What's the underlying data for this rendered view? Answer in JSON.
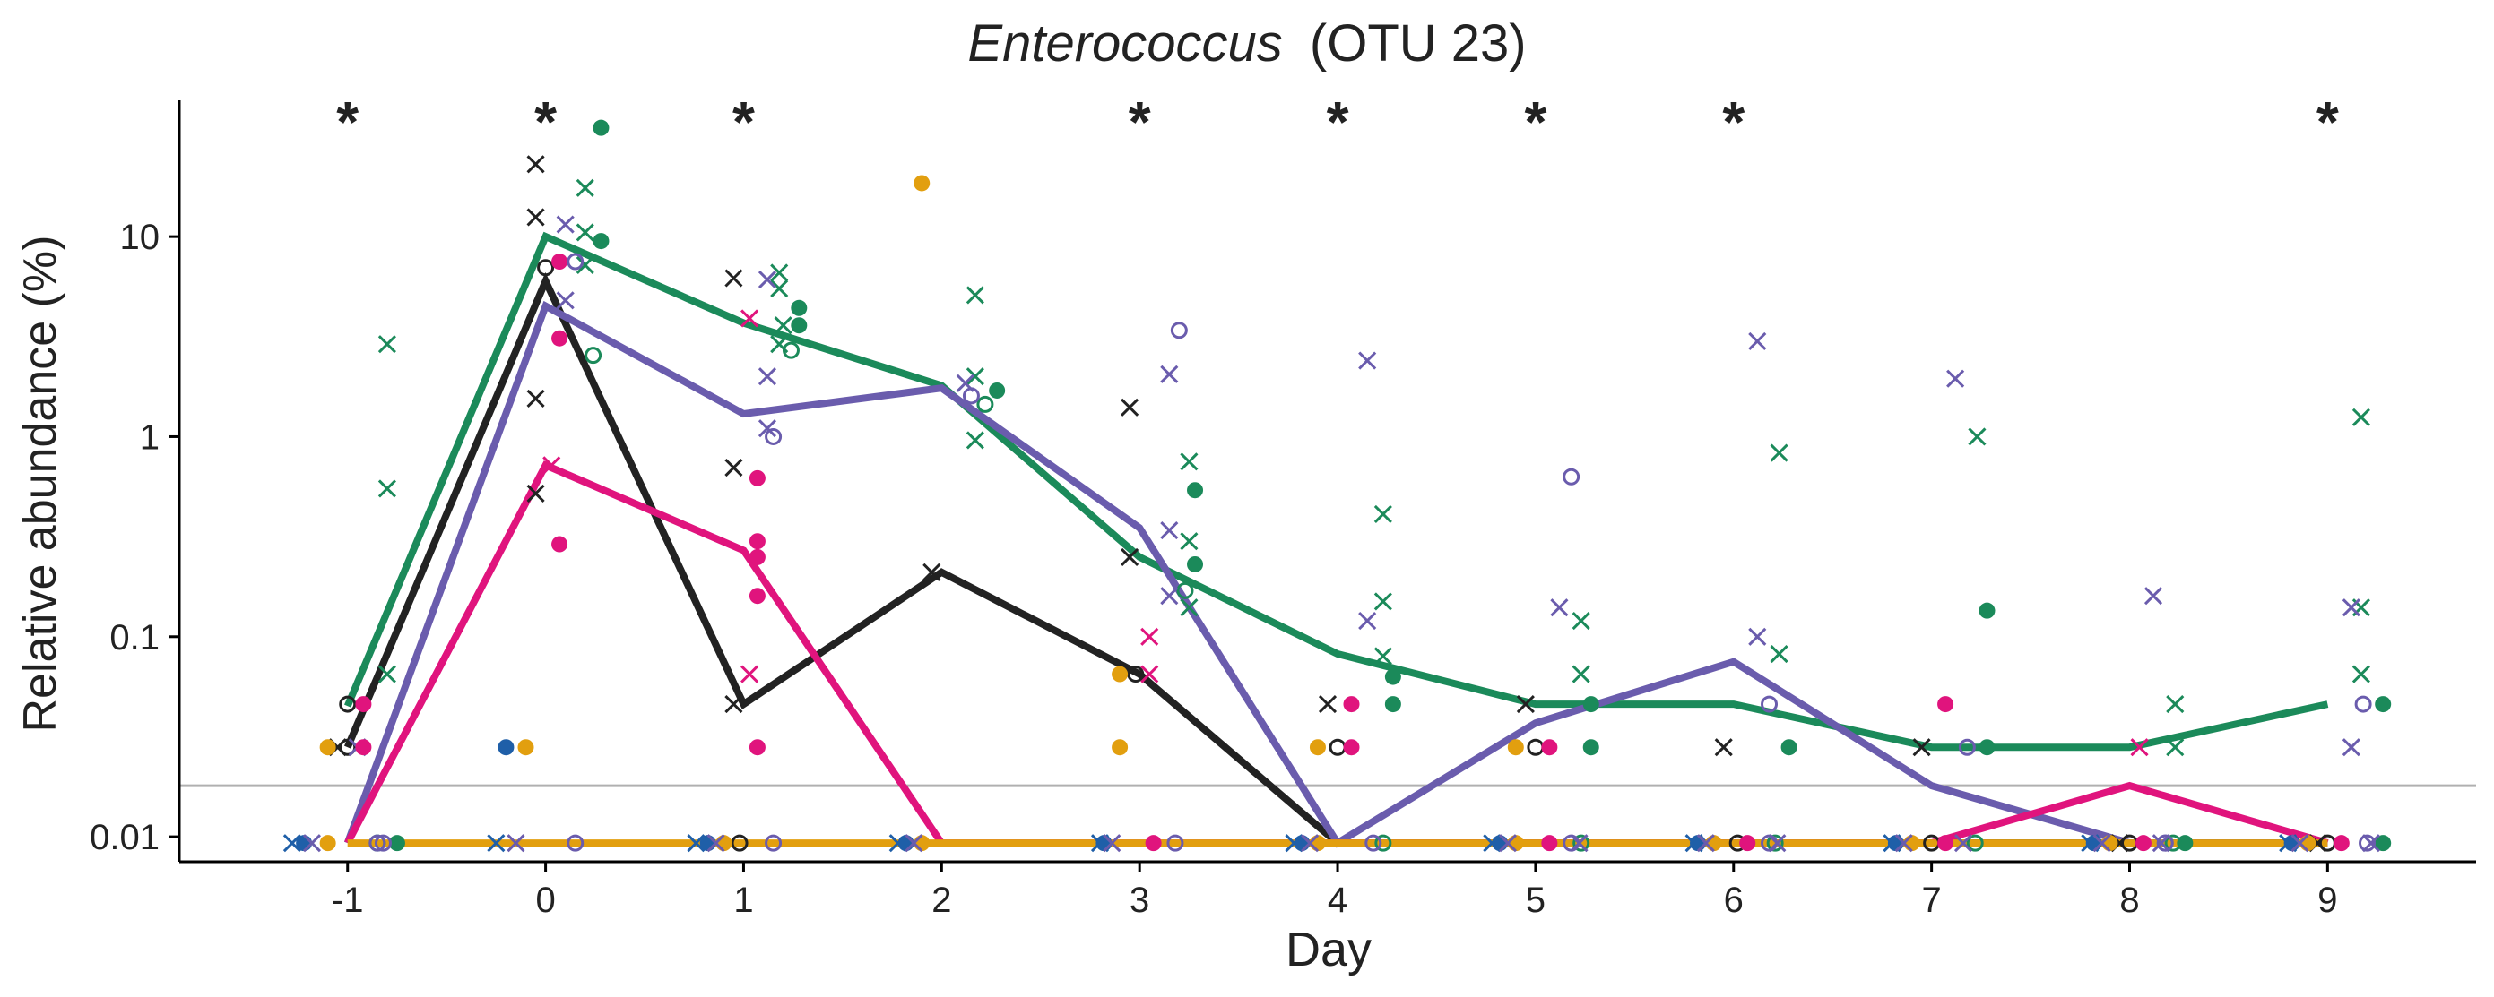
{
  "chart_data": {
    "type": "line",
    "title": {
      "taxon": "Enterococcus",
      "otu": "(OTU 23)"
    },
    "xlabel": "Day",
    "ylabel": "Relative abundance (%)",
    "x_ticks": [
      -1,
      0,
      1,
      2,
      3,
      4,
      5,
      6,
      7,
      8,
      9
    ],
    "y_scale": "log10",
    "y_ticks": [
      {
        "value": 0.01,
        "label": "0.01"
      },
      {
        "value": 0.1,
        "label": "0.1"
      },
      {
        "value": 1,
        "label": "1"
      },
      {
        "value": 10,
        "label": "10"
      }
    ],
    "ylim": [
      0.0075,
      48
    ],
    "xlim": [
      -1.85,
      9.75
    ],
    "detection_limit": 0.018,
    "significance_marker": "*",
    "significant_days": [
      -1,
      0,
      1,
      3,
      4,
      5,
      6,
      9
    ],
    "grid": false,
    "legend": "none",
    "series": [
      {
        "color": "#1b8a5a",
        "x": [
          -1,
          0,
          1,
          2,
          3,
          4,
          5,
          6,
          7,
          8,
          9
        ],
        "y": [
          0.045,
          10,
          3.7,
          1.8,
          0.25,
          0.082,
          0.046,
          0.046,
          0.028,
          0.028,
          0.046
        ]
      },
      {
        "color": "#222222",
        "x": [
          -1,
          0,
          1,
          2,
          3,
          4,
          5,
          6,
          7,
          8,
          9
        ],
        "y": [
          0.028,
          6,
          0.046,
          0.21,
          0.065,
          0.0093,
          0.0093,
          0.0093,
          0.0093,
          0.0093,
          0.0093
        ]
      },
      {
        "color": "#6a5cad",
        "x": [
          -1,
          0,
          1,
          2,
          3,
          4,
          5,
          6,
          7,
          8,
          9
        ],
        "y": [
          0.0093,
          4.5,
          1.3,
          1.75,
          0.35,
          0.0093,
          0.037,
          0.075,
          0.018,
          0.0093,
          0.0093
        ]
      },
      {
        "color": "#e0147d",
        "x": [
          -1,
          0,
          1,
          2,
          3,
          4,
          5,
          6,
          7,
          8,
          9
        ],
        "y": [
          0.0093,
          0.72,
          0.27,
          0.0093,
          0.0093,
          0.0093,
          0.0093,
          0.0093,
          0.0093,
          0.018,
          0.0093
        ]
      },
      {
        "color": "#e29f0f",
        "x": [
          -1,
          0,
          1,
          2,
          3,
          4,
          5,
          6,
          7,
          8,
          9
        ],
        "y": [
          0.0093,
          0.0093,
          0.0093,
          0.0093,
          0.0093,
          0.0093,
          0.0093,
          0.0093,
          0.0093,
          0.0093,
          0.0093
        ]
      }
    ],
    "points": [
      {
        "color": "#1b8a5a",
        "shape": "x",
        "x": [
          -0.8,
          -0.8,
          -0.8,
          0.2,
          0.2,
          0.2,
          1.18,
          1.18,
          1.18,
          1.2,
          2.17,
          2.17,
          2.17,
          3.25,
          3.25,
          3.25,
          4.23,
          4.23,
          4.23,
          5.23,
          5.23,
          6.23,
          6.23,
          7.23,
          8.23,
          8.23,
          9.17,
          9.17,
          9.17
        ]
      },
      {
        "color": "#1b8a5a",
        "shape": "x",
        "y": [
          2.9,
          0.55,
          0.065,
          17.5,
          10.5,
          7.2,
          6.6,
          5.5,
          2.9,
          3.6,
          5.1,
          2.0,
          0.96,
          0.75,
          0.3,
          0.14,
          0.41,
          0.15,
          0.08,
          0.12,
          0.065,
          0.83,
          0.082,
          1.0,
          0.046,
          0.028,
          1.25,
          0.14,
          0.065
        ]
      },
      {
        "color": "#1b8a5a",
        "shape": "dot",
        "x": [
          -0.75,
          0.28,
          0.28,
          1.28,
          1.28,
          2.28,
          3.28,
          3.28,
          4.28,
          4.28,
          5.28,
          5.28,
          6.28,
          7.28,
          7.28,
          8.28,
          9.28,
          9.28
        ],
        "y": [
          0.0093,
          35,
          9.5,
          4.4,
          3.6,
          1.7,
          0.54,
          0.23,
          0.063,
          0.046,
          0.046,
          0.028,
          0.028,
          0.135,
          0.028,
          0.0093,
          0.046,
          0.0093
        ]
      },
      {
        "color": "#1b8a5a",
        "shape": "circle",
        "x": [
          -0.85,
          0.24,
          1.24,
          2.22,
          3.23,
          4.23,
          5.23,
          6.21,
          7.22,
          8.22
        ],
        "y": [
          0.0093,
          2.55,
          2.7,
          1.45,
          0.17,
          0.0093,
          0.0093,
          0.0093,
          0.0093,
          0.0093
        ]
      },
      {
        "color": "#222222",
        "shape": "x",
        "x": [
          -1.05,
          -0.05,
          -0.05,
          -0.05,
          -0.05,
          0.95,
          0.95,
          0.95,
          1.95,
          2.95,
          2.95,
          3.95,
          4.95,
          5.95,
          6.95,
          7.95,
          8.95
        ],
        "y": [
          0.028,
          23,
          12.5,
          1.55,
          0.52,
          6.2,
          0.7,
          0.046,
          0.21,
          1.4,
          0.25,
          0.046,
          0.046,
          0.028,
          0.028,
          0.0093,
          0.0093
        ]
      },
      {
        "color": "#222222",
        "shape": "circle",
        "x": [
          -1.0,
          -1.0,
          0.0,
          0.98,
          2.98,
          4.0,
          5.0,
          6.02,
          7.0,
          8.0,
          9.0
        ],
        "y": [
          0.046,
          0.028,
          7.0,
          0.0093,
          0.065,
          0.028,
          0.028,
          0.0093,
          0.0093,
          0.0093,
          0.0093
        ]
      },
      {
        "color": "#6a5cad",
        "shape": "x",
        "x": [
          -0.95,
          0.1,
          0.1,
          1.12,
          1.12,
          1.12,
          2.12,
          3.15,
          3.15,
          3.15,
          4.15,
          4.15,
          5.12,
          6.12,
          6.12,
          7.12,
          8.12,
          9.12,
          9.12
        ],
        "y": [
          0.028,
          11.5,
          4.8,
          6.1,
          2.0,
          1.1,
          1.85,
          2.05,
          0.34,
          0.16,
          2.4,
          0.12,
          0.14,
          3.0,
          0.1,
          1.95,
          0.16,
          0.14,
          0.028
        ]
      },
      {
        "color": "#6a5cad",
        "shape": "circle",
        "x": [
          -0.85,
          0.15,
          1.15,
          2.15,
          3.2,
          4.18,
          5.18,
          6.18,
          7.18,
          8.18,
          9.18
        ],
        "y": [
          0.0093,
          7.5,
          1.0,
          1.6,
          3.4,
          0.0093,
          0.63,
          0.046,
          0.028,
          0.0093,
          0.046
        ]
      },
      {
        "color": "#e0147d",
        "shape": "x",
        "x": [
          0.03,
          1.03,
          1.03,
          3.05,
          3.05,
          8.05
        ],
        "y": [
          0.72,
          3.9,
          0.065,
          0.1,
          0.065,
          0.028
        ]
      },
      {
        "color": "#e0147d",
        "shape": "dot",
        "x": [
          -0.92,
          -0.92,
          0.07,
          0.07,
          0.07,
          1.07,
          1.07,
          1.07,
          1.07,
          1.07,
          3.07,
          4.07,
          4.07,
          5.07,
          5.07,
          6.07,
          7.07,
          7.07,
          8.07,
          9.07
        ],
        "y": [
          0.046,
          0.028,
          0.29,
          3.1,
          7.5,
          0.62,
          0.3,
          0.25,
          0.16,
          0.028,
          0.0093,
          0.046,
          0.028,
          0.028,
          0.0093,
          0.0093,
          0.046,
          0.0093,
          0.0093,
          0.0093
        ]
      },
      {
        "color": "#e29f0f",
        "shape": "dot",
        "x": [
          -1.1,
          -1.1,
          -0.1,
          0.9,
          1.9,
          1.9,
          2.9,
          2.9,
          3.9,
          3.9,
          4.9,
          4.9,
          5.9,
          6.9,
          7.9,
          8.9
        ],
        "y": [
          0.028,
          0.0093,
          0.028,
          0.0093,
          18.5,
          0.0093,
          0.065,
          0.028,
          0.028,
          0.0093,
          0.028,
          0.0093,
          0.0093,
          0.0093,
          0.0093,
          0.0093
        ]
      },
      {
        "color": "#1f5fa8",
        "shape": "dot",
        "x": [
          -1.22,
          -0.2,
          0.82,
          1.82,
          2.82,
          3.82,
          4.82,
          5.82,
          6.82,
          7.82,
          8.82
        ],
        "y": [
          0.0093,
          0.028,
          0.0093,
          0.0093,
          0.0093,
          0.0093,
          0.0093,
          0.0093,
          0.0093,
          0.0093,
          0.0093
        ]
      },
      {
        "color": "#1f5fa8",
        "shape": "x",
        "x": [
          -1.28,
          -0.25,
          0.76,
          1.78,
          2.8,
          3.78,
          4.78,
          5.8,
          6.8,
          7.8,
          8.8
        ],
        "y": [
          0.0093,
          0.0093,
          0.0093,
          0.0093,
          0.0093,
          0.0093,
          0.0093,
          0.0093,
          0.0093,
          0.0093,
          0.0093
        ]
      },
      {
        "color": "#6a5cad",
        "shape": "x",
        "x": [
          -1.18,
          -0.15,
          0.86,
          1.86,
          2.86,
          3.86,
          4.86,
          5.86,
          6.86,
          7.86,
          8.86,
          5.22,
          6.22,
          7.16,
          8.16,
          9.22
        ],
        "y": [
          0.0093,
          0.0093,
          0.0093,
          0.0093,
          0.0093,
          0.0093,
          0.0093,
          0.0093,
          0.0093,
          0.0093,
          0.0093,
          0.0093,
          0.0093,
          0.0093,
          0.0093,
          0.0093
        ]
      },
      {
        "color": "#6a5cad",
        "shape": "circle",
        "x": [
          -0.82,
          0.15,
          1.15,
          3.18,
          5.18,
          6.18,
          8.18,
          9.2
        ],
        "y": [
          0.0093,
          0.0093,
          0.0093,
          0.0093,
          0.0093,
          0.0093,
          0.0093,
          0.0093
        ]
      }
    ]
  }
}
